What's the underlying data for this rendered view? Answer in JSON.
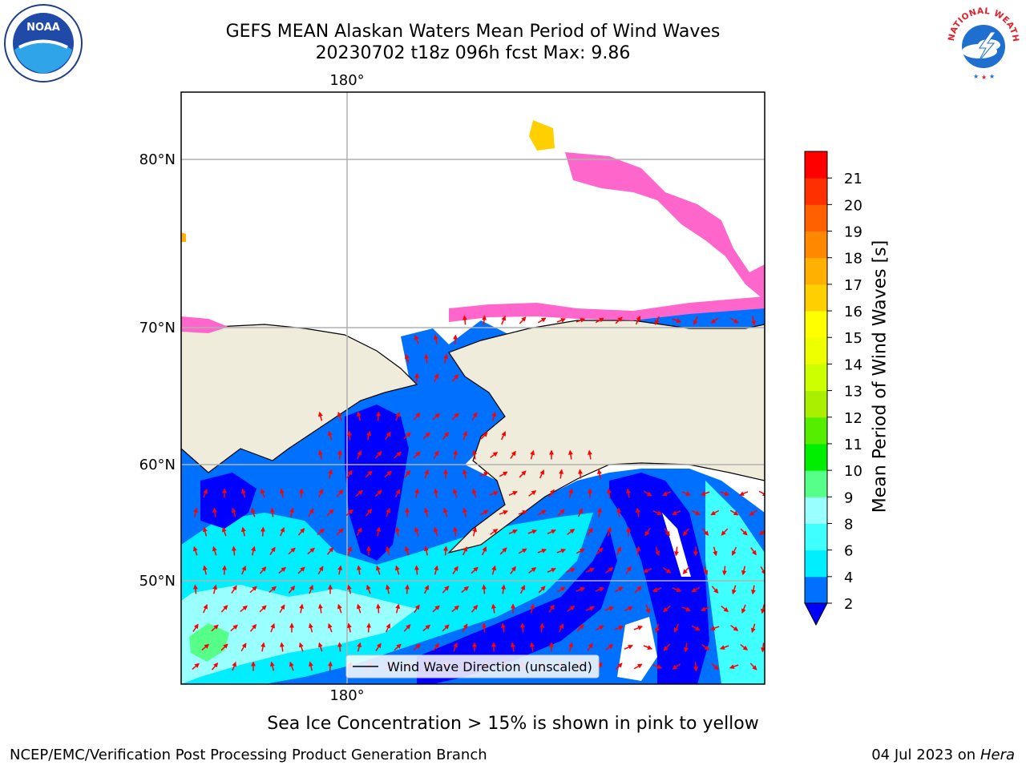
{
  "header": {
    "title_line1": "GEFS MEAN Alaskan Waters Mean Period of Wind Waves",
    "title_line2": "20230702 t18z 096h fcst   Max: 9.86"
  },
  "logos": {
    "left": "NOAA",
    "right": "NATIONAL WEATHER SERVICE"
  },
  "map": {
    "longitude_label_top": "180°",
    "longitude_label_bottom": "180°",
    "latitude_labels": [
      "80°N",
      "70°N",
      "60°N",
      "50°N"
    ],
    "legend_label": "Wind Wave Direction (unscaled)",
    "colors": {
      "land": "#efecdc",
      "ice": "#ff66cc",
      "vectors": "#ff0000",
      "grid": "#b0b0b0"
    }
  },
  "colorbar": {
    "title": "Mean Period of Wind Waves [s]",
    "ticks": [
      "2",
      "4",
      "6",
      "8",
      "9",
      "10",
      "11",
      "12",
      "13",
      "14",
      "15",
      "16",
      "17",
      "18",
      "19",
      "20",
      "21"
    ],
    "colors": [
      "#0070ff",
      "#00eeff",
      "#40ffff",
      "#99ffff",
      "#55ff88",
      "#00ee00",
      "#55ee00",
      "#aaee00",
      "#ccff00",
      "#eeff00",
      "#ffff00",
      "#ffd000",
      "#ffb000",
      "#ff8800",
      "#ff6000",
      "#ff3000",
      "#ff0000"
    ],
    "under_color": "#0000ff"
  },
  "footer": {
    "ice_note": "Sea Ice Concentration > 15% is shown in pink to yellow",
    "left": "NCEP/EMC/Verification Post Processing Product Generation Branch",
    "right_date": "04 Jul 2023 on ",
    "right_host": "Hera"
  }
}
